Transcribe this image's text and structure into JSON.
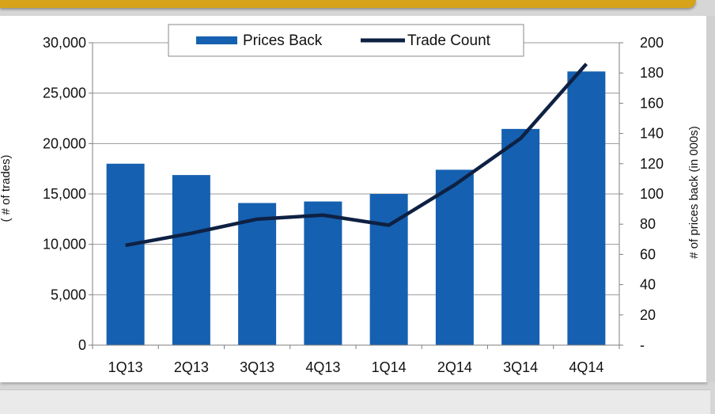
{
  "chart_data": {
    "type": "bar",
    "categories": [
      "1Q13",
      "2Q13",
      "3Q13",
      "4Q13",
      "1Q14",
      "2Q14",
      "3Q14",
      "4Q14"
    ],
    "series": [
      {
        "name": "Prices Back",
        "type": "bar",
        "axis": "right",
        "values": [
          120,
          112.5,
          94,
          95,
          100,
          116,
          143,
          181
        ]
      },
      {
        "name": "Trade Count",
        "type": "line",
        "axis": "left",
        "values": [
          9900,
          11100,
          12500,
          12900,
          11900,
          15900,
          20500,
          27900
        ]
      }
    ],
    "left_axis": {
      "label": "( # of trades)",
      "ylim": [
        0,
        30000
      ],
      "ticks": [
        "0",
        "5,000",
        "10,000",
        "15,000",
        "20,000",
        "25,000",
        "30,000"
      ]
    },
    "right_axis": {
      "label": "# of prices back (in 000s)",
      "ylim": [
        0,
        200
      ],
      "ticks": [
        "-",
        "20",
        "40",
        "60",
        "80",
        "100",
        "120",
        "140",
        "160",
        "180",
        "200"
      ]
    },
    "grid": true,
    "legend_position": "top-center",
    "colors": {
      "bar": "#1560b0",
      "line": "#0e2143",
      "grid": "#9a9a9a",
      "banner": "#d6a319"
    }
  }
}
